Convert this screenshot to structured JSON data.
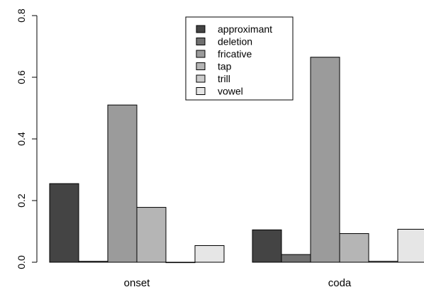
{
  "chart_data": {
    "type": "bar",
    "title": "",
    "xlabel": "",
    "ylabel": "",
    "ylim": [
      0,
      0.8
    ],
    "yticks": [
      "0.0",
      "0.2",
      "0.4",
      "0.6",
      "0.8"
    ],
    "yticks_values": [
      0,
      0.2,
      0.4,
      0.6,
      0.8
    ],
    "categories": [
      "onset",
      "coda"
    ],
    "series": [
      {
        "name": "approximant",
        "color": "#444444",
        "values": [
          0.255,
          0.105
        ]
      },
      {
        "name": "deletion",
        "color": "#707070",
        "values": [
          0.003,
          0.025
        ]
      },
      {
        "name": "fricative",
        "color": "#9b9b9b",
        "values": [
          0.51,
          0.665
        ]
      },
      {
        "name": "tap",
        "color": "#b5b5b5",
        "values": [
          0.178,
          0.093
        ]
      },
      {
        "name": "trill",
        "color": "#cccccc",
        "values": [
          0.0,
          0.003
        ]
      },
      {
        "name": "vowel",
        "color": "#e6e6e6",
        "values": [
          0.054,
          0.107
        ]
      }
    ],
    "legend_position": "top-center",
    "grid": false
  }
}
